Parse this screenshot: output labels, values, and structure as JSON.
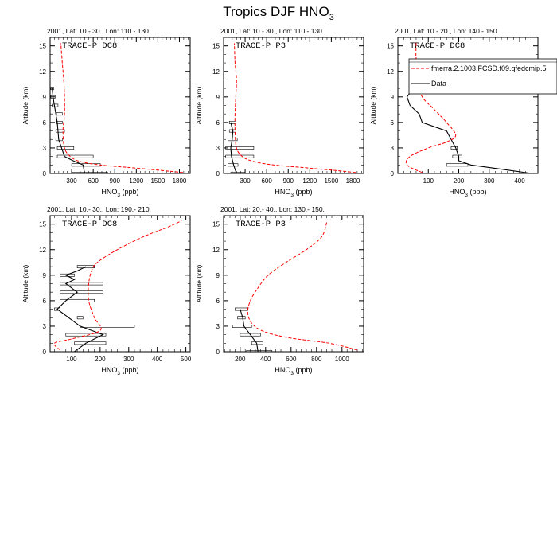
{
  "figure": {
    "title_main": "Tropics DJF HNO",
    "title_sub": "3"
  },
  "common": {
    "ylabel": "Altitude (km)",
    "xlabel_main": "HNO",
    "xlabel_sub": "3",
    "xlabel_unit": " (ppb)"
  },
  "legend": {
    "model_label": "fmerra.2.1003.FCSD.f09.qfedcmip.5",
    "data_label": "Data"
  },
  "colors": {
    "model": "#ff0000",
    "data": "#000000",
    "axis": "#000000"
  },
  "chart_data": [
    {
      "type": "line",
      "title": "2001, Lat: 10.- 30., Lon: 110.- 130.",
      "campaign": "TRACE-P DC8",
      "xlim": [
        0,
        1950
      ],
      "ylim": [
        0,
        16
      ],
      "xticks": [
        300,
        600,
        900,
        1200,
        1500,
        1800
      ],
      "yticks": [
        0,
        3,
        6,
        9,
        12,
        15
      ],
      "model": {
        "x": [
          1850,
          1500,
          1100,
          700,
          420,
          280,
          200,
          180,
          200,
          200,
          190,
          170,
          150
        ],
        "y": [
          0.1,
          0.4,
          0.7,
          1.0,
          1.4,
          2.0,
          3.0,
          5.0,
          7.0,
          9.0,
          11.0,
          13.0,
          15.3
        ]
      },
      "data": {
        "x": [
          480,
          460,
          320,
          200,
          160,
          120,
          100,
          80,
          60,
          40,
          30
        ],
        "y": [
          0,
          1,
          1.5,
          2,
          3,
          4,
          6,
          7,
          8,
          9,
          10
        ]
      },
      "bars": [
        {
          "y": 0,
          "x1": 300,
          "x2": 800
        },
        {
          "y": 1,
          "x1": 300,
          "x2": 700
        },
        {
          "y": 2,
          "x1": 100,
          "x2": 600
        },
        {
          "y": 3,
          "x1": 100,
          "x2": 330
        },
        {
          "y": 4,
          "x1": 80,
          "x2": 170
        },
        {
          "y": 5,
          "x1": 80,
          "x2": 200
        },
        {
          "y": 6,
          "x1": 90,
          "x2": 170
        },
        {
          "y": 7,
          "x1": 90,
          "x2": 170
        },
        {
          "y": 8,
          "x1": 30,
          "x2": 110
        },
        {
          "y": 9,
          "x1": 10,
          "x2": 70
        },
        {
          "y": 10,
          "x1": 10,
          "x2": 50
        }
      ]
    },
    {
      "type": "line",
      "title": "2001, Lat: 10.- 30., Lon: 110.- 130.",
      "campaign": "TRACE-P P3",
      "xlim": [
        0,
        1950
      ],
      "ylim": [
        0,
        16
      ],
      "xticks": [
        300,
        600,
        900,
        1200,
        1500,
        1800
      ],
      "yticks": [
        0,
        3,
        6,
        9,
        12,
        15
      ],
      "model": {
        "x": [
          1840,
          1500,
          1100,
          700,
          420,
          260,
          180,
          160,
          160,
          170,
          180,
          160,
          150
        ],
        "y": [
          0.1,
          0.4,
          0.7,
          1.0,
          1.4,
          2.0,
          3.0,
          5.0,
          7.0,
          9.0,
          11.0,
          13.0,
          15.3
        ]
      },
      "data": {
        "x": [
          180,
          140,
          110,
          100,
          120,
          130,
          100
        ],
        "y": [
          0,
          1,
          2,
          3,
          4,
          5,
          6
        ]
      },
      "bars": [
        {
          "y": 0,
          "x1": 100,
          "x2": 300
        },
        {
          "y": 1,
          "x1": 60,
          "x2": 200
        },
        {
          "y": 2,
          "x1": 30,
          "x2": 420
        },
        {
          "y": 3,
          "x1": 30,
          "x2": 420
        },
        {
          "y": 4,
          "x1": 60,
          "x2": 190
        },
        {
          "y": 5,
          "x1": 80,
          "x2": 170
        },
        {
          "y": 6,
          "x1": 80,
          "x2": 170
        }
      ]
    },
    {
      "type": "line",
      "title": "2001, Lat: 10.- 20., Lon: 140.- 150.",
      "campaign": "TRACE-P DC8",
      "xlim": [
        0,
        460
      ],
      "ylim": [
        0,
        16
      ],
      "xticks": [
        100,
        200,
        300,
        400
      ],
      "yticks": [
        0,
        3,
        6,
        9,
        12,
        15
      ],
      "model": {
        "x": [
          80,
          30,
          40,
          100,
          160,
          190,
          160,
          120,
          80,
          70,
          70,
          60,
          60
        ],
        "y": [
          0.1,
          1.0,
          2.0,
          3.0,
          3.7,
          4.5,
          6.0,
          7.5,
          9.0,
          10.5,
          12.0,
          13.5,
          15.5
        ]
      },
      "data": {
        "x": [
          440,
          240,
          200,
          200,
          190,
          160,
          80,
          70,
          40,
          30,
          50
        ],
        "y": [
          0,
          1,
          1.5,
          2,
          3,
          5,
          6,
          7,
          8,
          9,
          10
        ]
      },
      "bars": [
        {
          "y": 1,
          "x1": 160,
          "x2": 230
        },
        {
          "y": 2,
          "x1": 180,
          "x2": 210
        },
        {
          "y": 3,
          "x1": 175,
          "x2": 195
        }
      ]
    },
    {
      "type": "line",
      "title": "2001, Lat: 10.- 30., Lon: 190.- 210.",
      "campaign": "TRACE-P DC8",
      "xlim": [
        25,
        515
      ],
      "ylim": [
        0,
        16
      ],
      "xticks": [
        100,
        200,
        300,
        400,
        500
      ],
      "yticks": [
        0,
        3,
        6,
        9,
        12,
        15
      ],
      "model": {
        "x": [
          60,
          40,
          100,
          200,
          180,
          160,
          160,
          170,
          190,
          260,
          350,
          440,
          485
        ],
        "y": [
          0.2,
          1.0,
          1.5,
          2.5,
          4.0,
          6.0,
          8.0,
          9.5,
          10.5,
          12.0,
          13.5,
          14.7,
          15.4
        ]
      },
      "data": {
        "x": [
          110,
          150,
          210,
          130,
          50,
          80,
          120,
          80,
          110,
          80,
          120,
          150
        ],
        "y": [
          0,
          1,
          2,
          3,
          5,
          6,
          7,
          8,
          8.5,
          9,
          9.5,
          10
        ]
      },
      "bars": [
        {
          "y": 1,
          "x1": 110,
          "x2": 220
        },
        {
          "y": 2,
          "x1": 80,
          "x2": 220
        },
        {
          "y": 3,
          "x1": 130,
          "x2": 320
        },
        {
          "y": 4,
          "x1": 120,
          "x2": 140
        },
        {
          "y": 5,
          "x1": 40,
          "x2": 60
        },
        {
          "y": 6,
          "x1": 60,
          "x2": 180
        },
        {
          "y": 7,
          "x1": 60,
          "x2": 210
        },
        {
          "y": 8,
          "x1": 60,
          "x2": 210
        },
        {
          "y": 9,
          "x1": 60,
          "x2": 110
        },
        {
          "y": 10,
          "x1": 120,
          "x2": 180
        }
      ]
    },
    {
      "type": "line",
      "title": "2001, Lat: 20.- 40., Lon: 130.- 150.",
      "campaign": "TRACE-P P3",
      "xlim": [
        70,
        1170
      ],
      "ylim": [
        0,
        16
      ],
      "xticks": [
        200,
        400,
        600,
        800,
        1000
      ],
      "yticks": [
        0,
        3,
        6,
        9,
        12,
        15
      ],
      "model": {
        "x": [
          1120,
          900,
          600,
          400,
          300,
          260,
          280,
          340,
          420,
          560,
          720,
          840,
          880
        ],
        "y": [
          0.2,
          1.0,
          1.6,
          2.3,
          3.2,
          4.5,
          6.0,
          7.5,
          9.0,
          10.5,
          12.0,
          13.5,
          15.2
        ]
      },
      "data": {
        "x": [
          340,
          330,
          280,
          230,
          220,
          210,
          200
        ],
        "y": [
          0,
          1,
          2,
          3,
          4,
          4.5,
          5
        ]
      },
      "bars": [
        {
          "y": 0,
          "x1": 250,
          "x2": 450
        },
        {
          "y": 1,
          "x1": 290,
          "x2": 380
        },
        {
          "y": 2,
          "x1": 200,
          "x2": 360
        },
        {
          "y": 3,
          "x1": 140,
          "x2": 290
        },
        {
          "y": 4,
          "x1": 180,
          "x2": 240
        },
        {
          "y": 5,
          "x1": 160,
          "x2": 260
        }
      ]
    }
  ]
}
